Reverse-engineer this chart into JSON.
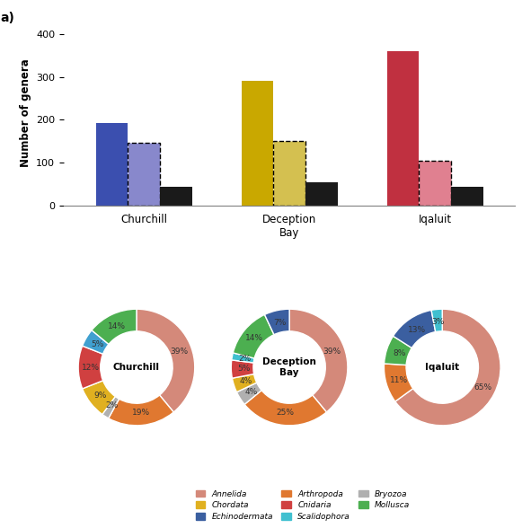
{
  "bar_groups": [
    "Churchill",
    "Deception\nBay",
    "Iqaluit"
  ],
  "bar_solid": [
    193,
    290,
    360
  ],
  "bar_dashed": [
    145,
    150,
    105
  ],
  "bar_black": [
    43,
    53,
    43
  ],
  "bar_solid_colors": [
    "#3B4FAF",
    "#C9A800",
    "#C03040"
  ],
  "bar_dashed_colors": [
    "#8888CC",
    "#D4C050",
    "#E08090"
  ],
  "ylabel": "Number of genera",
  "ylim": [
    0,
    430
  ],
  "yticks": [
    0,
    100,
    200,
    300,
    400
  ],
  "donut_labels": [
    "Churchill",
    "Deception\nBay",
    "Iqaluit"
  ],
  "churchill_sizes": [
    39,
    19,
    2,
    9,
    12,
    5,
    14
  ],
  "deception_sizes": [
    39,
    25,
    4,
    4,
    5,
    2,
    14,
    7
  ],
  "iqaluit_sizes": [
    65,
    11,
    8,
    13,
    3
  ],
  "churchill_colors": [
    "#D4897A",
    "#E07830",
    "#B0B0B0",
    "#E0B020",
    "#D04040",
    "#40A0D0",
    "#4CAF50"
  ],
  "deception_colors": [
    "#D4897A",
    "#E07830",
    "#B0B0B0",
    "#E0B020",
    "#D04040",
    "#40C0D0",
    "#4CAF50",
    "#3B5FA0"
  ],
  "iqaluit_colors": [
    "#D4897A",
    "#E07830",
    "#4CAF50",
    "#3B5FA0",
    "#40C0D0"
  ],
  "churchill_pcts": [
    "39%",
    "19%",
    "2%",
    "9%",
    "12%",
    "5%",
    "14%"
  ],
  "deception_pcts": [
    "39%",
    "25%",
    "4%",
    "4%",
    "5%",
    "2%",
    "14%",
    "7%"
  ],
  "iqaluit_pcts": [
    "65%",
    "11%",
    "8%",
    "13%",
    "3%"
  ],
  "legend_items": [
    {
      "label": "Annelida",
      "color": "#D4897A"
    },
    {
      "label": "Chordata",
      "color": "#E0B020"
    },
    {
      "label": "Echinodermata",
      "color": "#3B5FA0"
    },
    {
      "label": "Arthropoda",
      "color": "#E07830"
    },
    {
      "label": "Cnidaria",
      "color": "#D04040"
    },
    {
      "label": "Scalidophora",
      "color": "#40C0D0"
    },
    {
      "label": "Bryozoa",
      "color": "#B0B0B0"
    },
    {
      "label": "Mollusca",
      "color": "#4CAF50"
    }
  ]
}
